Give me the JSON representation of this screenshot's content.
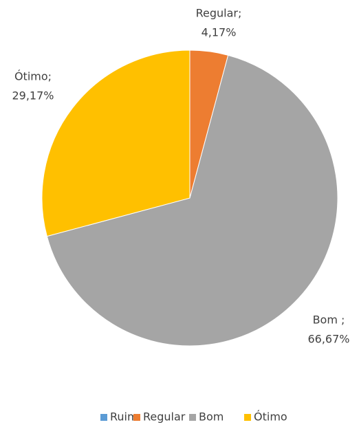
{
  "chart_data": {
    "type": "pie",
    "categories": [
      "Ruim",
      "Regular",
      "Bom",
      "Ótimo"
    ],
    "values": [
      0,
      4.17,
      66.67,
      29.17
    ],
    "label_names": [
      null,
      "Regular;",
      "Bom ;",
      "Ótimo;"
    ],
    "value_labels": [
      null,
      "4,17%",
      "66,67%",
      "29,17%"
    ],
    "colors": [
      "#5b9bd5",
      "#ed7d31",
      "#a5a5a5",
      "#ffc000"
    ],
    "legend": "bottom"
  }
}
